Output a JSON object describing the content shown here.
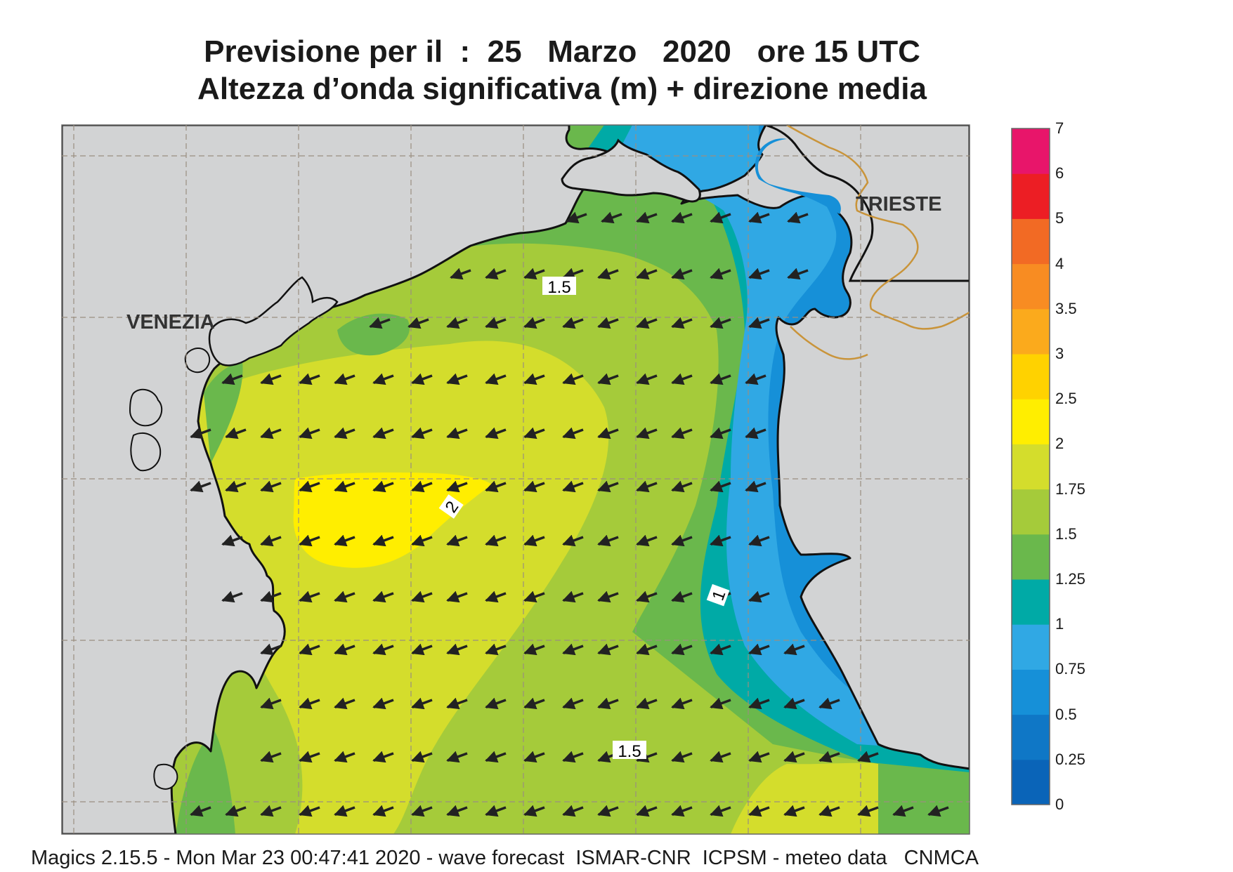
{
  "title": {
    "line1": "Previsione per il  :  25   Marzo   2020   ore 15 UTC",
    "line2": "Altezza d’onda significativa (m) + direzione media"
  },
  "map": {
    "city_labels": [
      "VENEZIA",
      "TRIESTE"
    ],
    "contour_labels": [
      "1.5",
      "2",
      "1",
      "1.5"
    ],
    "wave_direction": "towards west-southwest",
    "colors": {
      "land": "#d2d3d4",
      "coastline": "#111111",
      "border": "#c9943a",
      "gridline": "#9a8e80"
    }
  },
  "colorbar": {
    "ticks": [
      "0",
      "0.25",
      "0.5",
      "0.75",
      "1",
      "1.25",
      "1.5",
      "1.75",
      "2",
      "2.5",
      "3",
      "3.5",
      "4",
      "5",
      "6",
      "7"
    ],
    "colors": [
      "#0a64b8",
      "#0f77c6",
      "#1690d8",
      "#30a8e4",
      "#00aaa6",
      "#6ab84c",
      "#a5cb3a",
      "#d4dd2c",
      "#ffee00",
      "#ffd200",
      "#fbaa1c",
      "#f88c22",
      "#f26a24",
      "#ec1e24",
      "#e8156a"
    ]
  },
  "footer": "Magics 2.15.5 - Mon Mar 23 00:47:41 2020 - wave forecast  ISMAR-CNR  ICPSM - meteo data   CNMCA"
}
